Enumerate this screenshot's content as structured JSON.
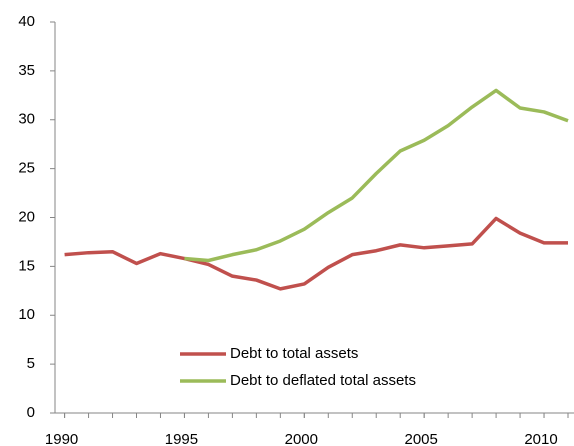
{
  "chart_data": {
    "type": "line",
    "x": [
      1990,
      1991,
      1992,
      1993,
      1994,
      1995,
      1996,
      1997,
      1998,
      1999,
      2000,
      2001,
      2002,
      2003,
      2004,
      2005,
      2006,
      2007,
      2008,
      2009,
      2010,
      2011
    ],
    "series": [
      {
        "name": "Debt to total assets",
        "color": "#c0504d",
        "values": [
          16.2,
          16.4,
          16.5,
          15.3,
          16.3,
          15.8,
          15.2,
          14.0,
          13.6,
          12.7,
          13.2,
          14.9,
          16.2,
          16.6,
          17.2,
          16.9,
          17.1,
          17.3,
          19.9,
          18.4,
          17.4,
          17.4
        ]
      },
      {
        "name": "Debt to deflated total assets",
        "color": "#9bbb59",
        "values": [
          null,
          null,
          null,
          null,
          null,
          15.8,
          15.6,
          16.2,
          16.7,
          17.6,
          18.8,
          20.5,
          22.0,
          24.5,
          26.8,
          27.9,
          29.4,
          31.3,
          33.0,
          31.2,
          30.8,
          29.9
        ]
      }
    ],
    "xlim": [
      1989.6,
      2011.25
    ],
    "xticks": [
      1990,
      1995,
      2000,
      2005,
      2010
    ],
    "ylim": [
      0,
      40
    ],
    "yticks": [
      0,
      5,
      10,
      15,
      20,
      25,
      30,
      35,
      40
    ]
  }
}
